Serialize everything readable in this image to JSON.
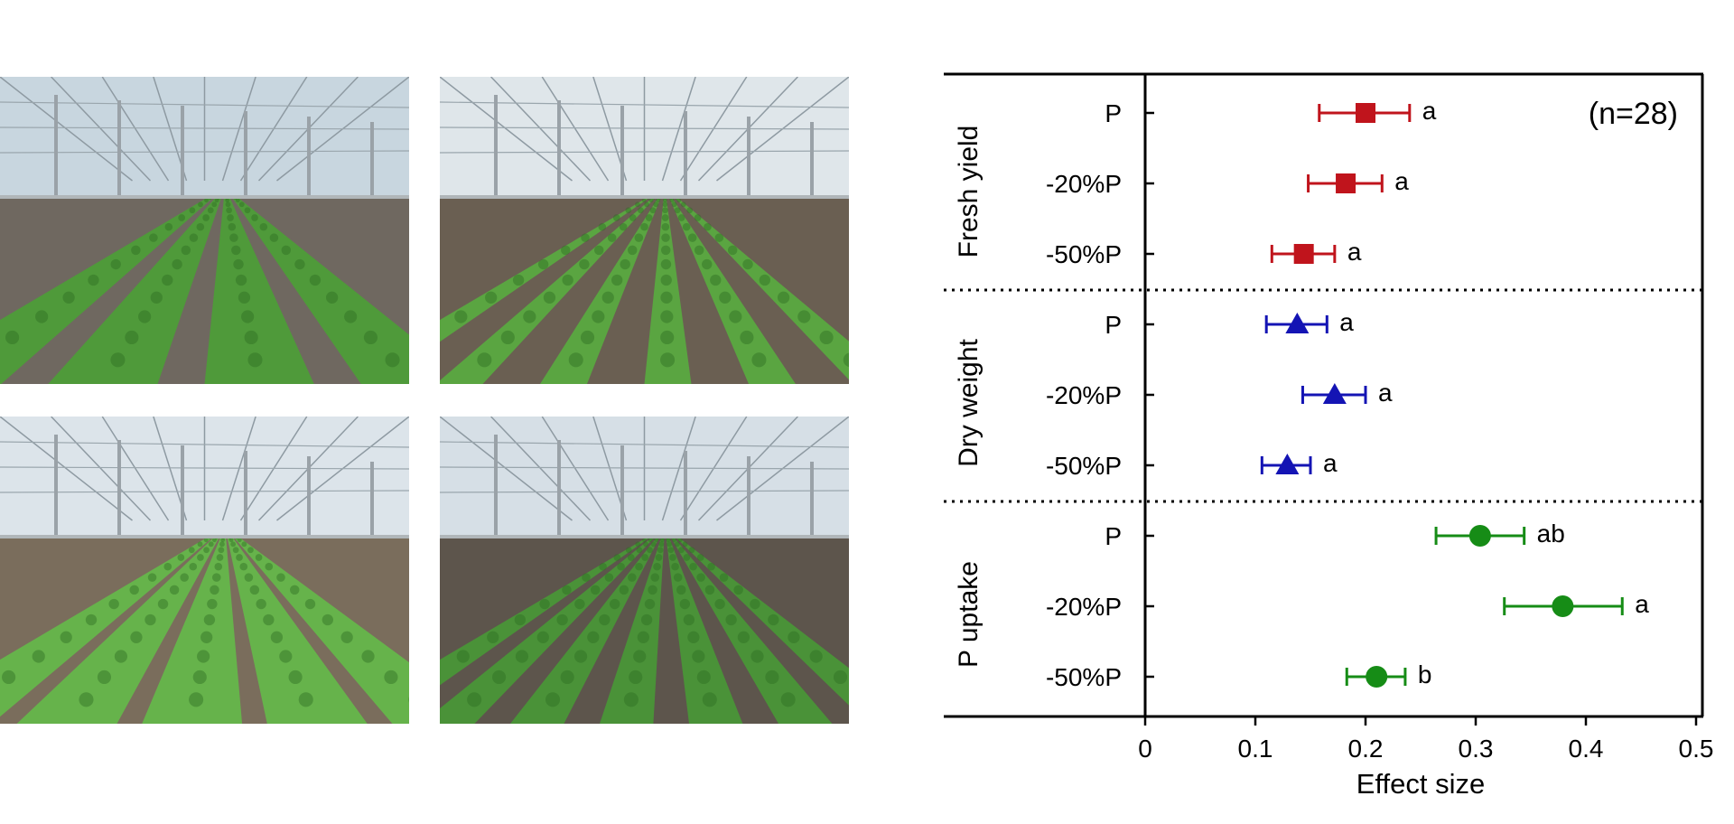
{
  "photos": [
    {
      "name": "greenhouse-photo-1",
      "sky": "#c8d6df",
      "soil": "#6f6860",
      "crop": "#4f9a3a",
      "rows": 4,
      "cropDensity": 0.7
    },
    {
      "name": "greenhouse-photo-2",
      "sky": "#dfe6ea",
      "soil": "#6a5f52",
      "crop": "#5aa541",
      "rows": 6,
      "cropDensity": 0.45
    },
    {
      "name": "greenhouse-photo-3",
      "sky": "#dce4ea",
      "soil": "#7a6d5c",
      "crop": "#66b34b",
      "rows": 5,
      "cropDensity": 0.8
    },
    {
      "name": "greenhouse-photo-4",
      "sky": "#d6dfe6",
      "soil": "#5d554c",
      "crop": "#4a9238",
      "rows": 7,
      "cropDensity": 0.6
    }
  ],
  "chart_data": {
    "type": "scatter",
    "subtype": "forest-plot",
    "annotation": "(n=28)",
    "xlabel": "Effect size",
    "xlim": [
      0,
      0.5
    ],
    "xticks": [
      "0",
      "0.1",
      "0.2",
      "0.3",
      "0.4",
      "0.5"
    ],
    "xtick_values": [
      0,
      0.1,
      0.2,
      0.3,
      0.4,
      0.5
    ],
    "groups": [
      {
        "label": "Fresh yield",
        "color": "#c0141c",
        "marker": "square",
        "rows": [
          {
            "label": "P",
            "value": 0.2,
            "low": 0.158,
            "high": 0.24,
            "letter": "a"
          },
          {
            "label": "-20%P",
            "value": 0.182,
            "low": 0.148,
            "high": 0.215,
            "letter": "a"
          },
          {
            "label": "-50%P",
            "value": 0.144,
            "low": 0.115,
            "high": 0.172,
            "letter": "a"
          }
        ]
      },
      {
        "label": "Dry weight",
        "color": "#1414b4",
        "marker": "triangle",
        "rows": [
          {
            "label": "P",
            "value": 0.138,
            "low": 0.11,
            "high": 0.165,
            "letter": "a"
          },
          {
            "label": "-20%P",
            "value": 0.172,
            "low": 0.143,
            "high": 0.2,
            "letter": "a"
          },
          {
            "label": "-50%P",
            "value": 0.129,
            "low": 0.106,
            "high": 0.15,
            "letter": "a"
          }
        ]
      },
      {
        "label": "P uptake",
        "color": "#168c16",
        "marker": "circle",
        "rows": [
          {
            "label": "P",
            "value": 0.304,
            "low": 0.264,
            "high": 0.344,
            "letter": "ab"
          },
          {
            "label": "-20%P",
            "value": 0.379,
            "low": 0.326,
            "high": 0.433,
            "letter": "a"
          },
          {
            "label": "-50%P",
            "value": 0.21,
            "low": 0.183,
            "high": 0.236,
            "letter": "b"
          }
        ]
      }
    ]
  }
}
